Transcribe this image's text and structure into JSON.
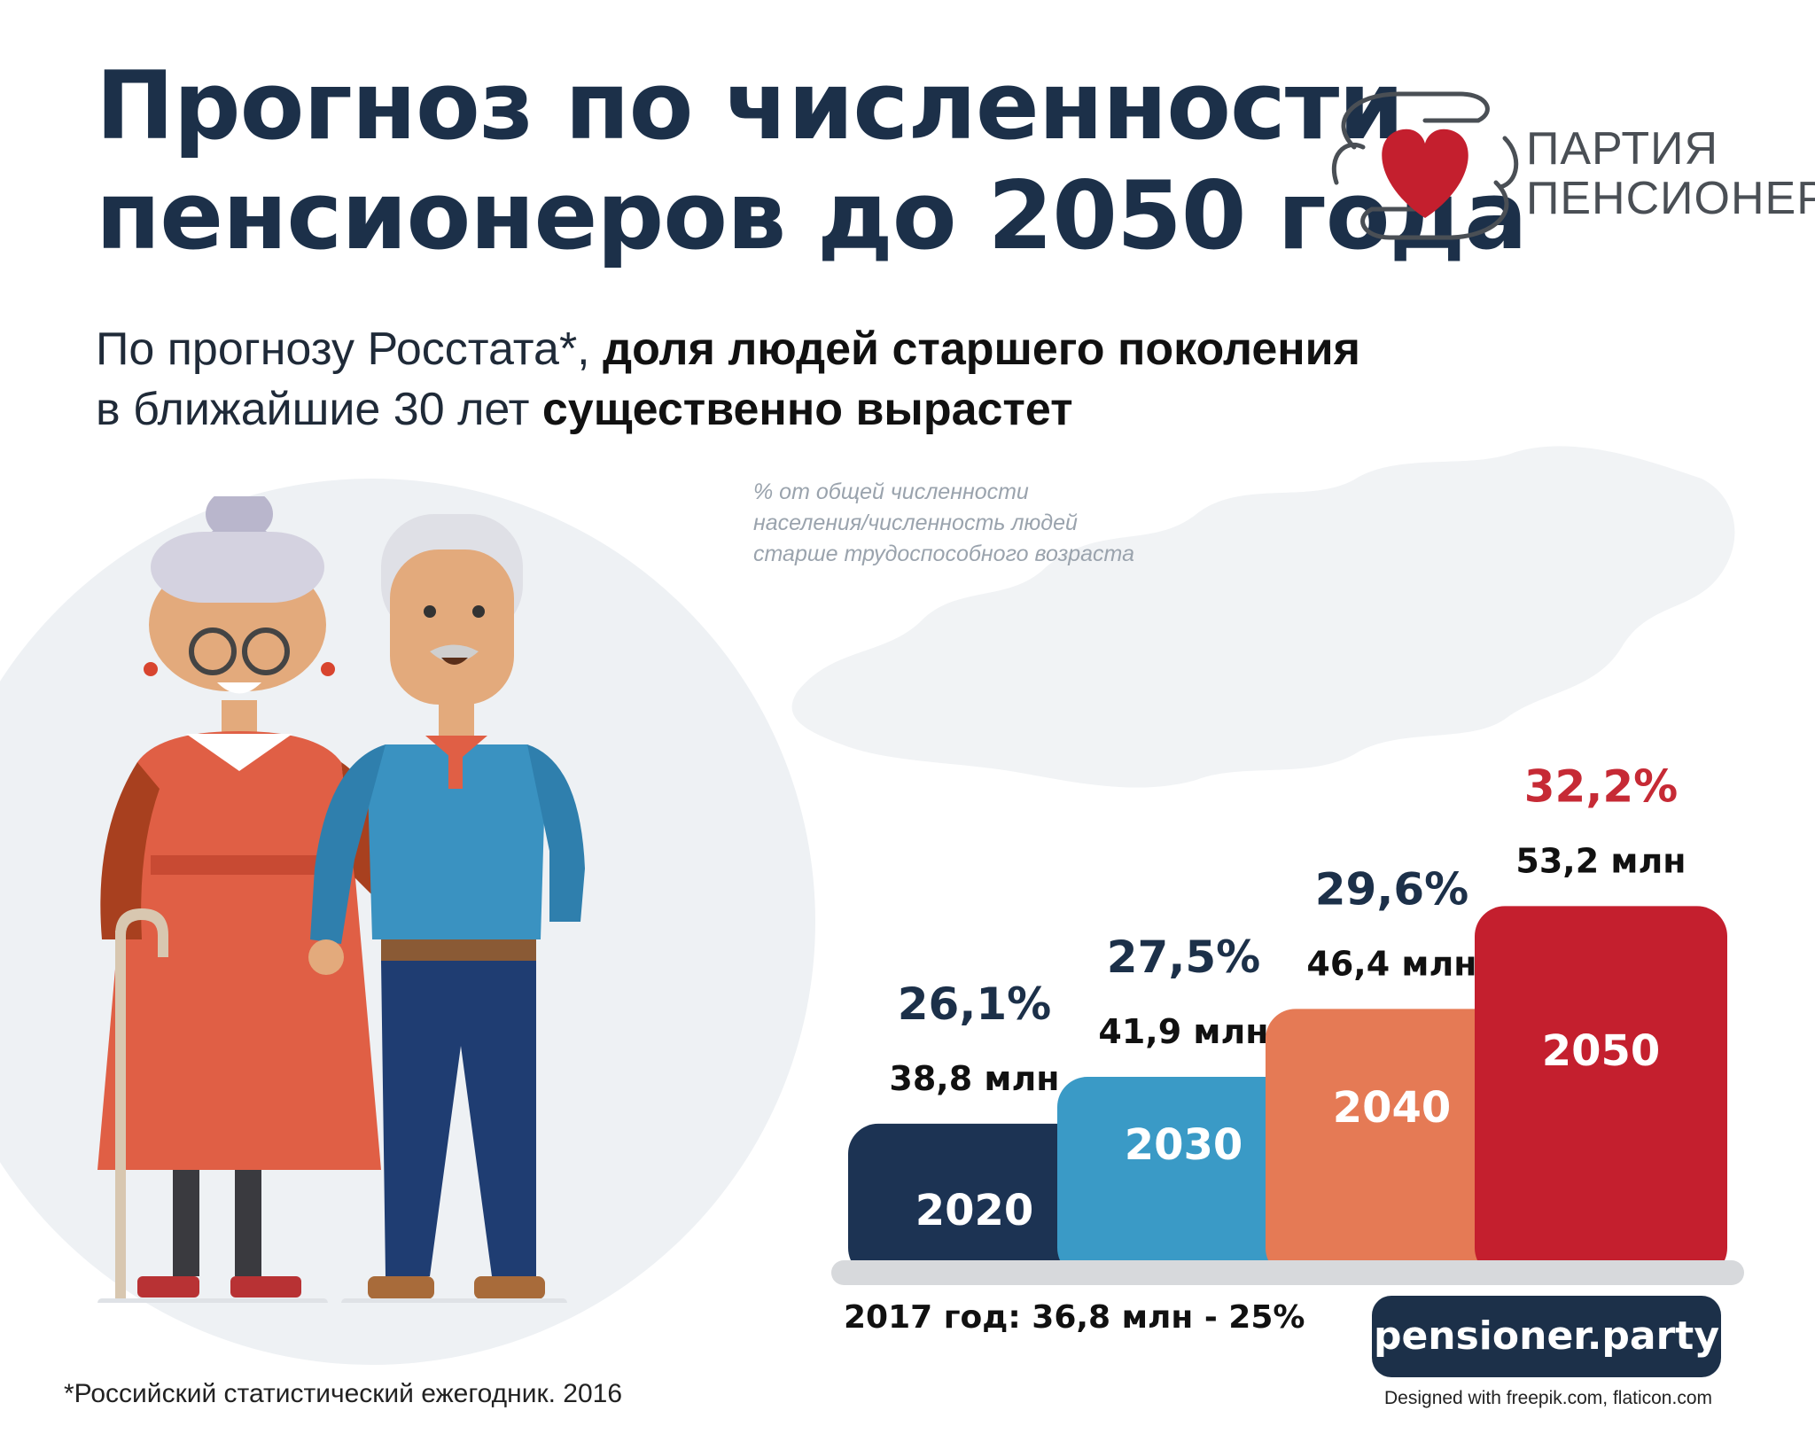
{
  "title": {
    "line1": "Прогноз по численности",
    "line2": "пенсионеров до 2050 года"
  },
  "subtitle": {
    "line1_regular": "По прогнозу Росстата*, ",
    "line1_bold": "доля людей старшего поколения",
    "line2_regular": "в ближайшие 30 лет ",
    "line2_bold": "существенно вырастет"
  },
  "logo": {
    "line1": "ПАРТИЯ",
    "line2": "ПЕНСИОНЕРОВ",
    "icon": "heart-in-hands-icon"
  },
  "chart_data": {
    "type": "bar",
    "note": "% от общей численности населения/численность людей старше трудоспособного возраста",
    "note_lines": [
      "% от общей численности",
      "населения/численность людей",
      "старше трудоспособного возраста"
    ],
    "categories": [
      "2020",
      "2030",
      "2040",
      "2050"
    ],
    "series": [
      {
        "values": [
          38.8,
          41.9,
          46.4,
          53.2
        ]
      },
      {
        "values": [
          26.1,
          27.5,
          29.6,
          32.2
        ]
      }
    ],
    "value_labels": [
      "38,8 млн",
      "41,9 млн",
      "46,4 млн",
      "53,2 млн"
    ],
    "percent_labels": [
      "26,1%",
      "27,5%",
      "29,6%",
      "32,2%"
    ],
    "bar_colors": [
      "#1c3353",
      "#3a9ac6",
      "#e57a55",
      "#c41f2e"
    ],
    "percent_colors": [
      "#1c3049",
      "#1c3049",
      "#1c3049",
      "#c62a35"
    ]
  },
  "base_note": "2017 год: 36,8 млн - 25%",
  "url": "pensioner.party",
  "footnote": "*Российский статистический ежегодник. 2016",
  "credit": "Designed with freepik.com, flaticon.com"
}
